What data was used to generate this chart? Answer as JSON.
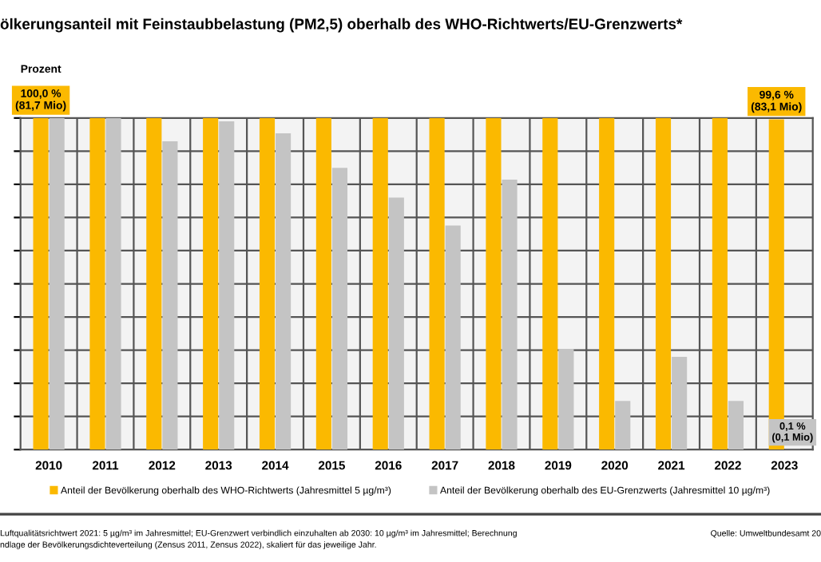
{
  "chart_data": {
    "type": "bar",
    "title": "ölkerungsanteil mit Feinstaubbelastung (PM2,5) oberhalb des WHO-Richtwerts/EU-Grenzwerts*",
    "ylabel": "Prozent",
    "categories": [
      "2010",
      "2011",
      "2012",
      "2013",
      "2014",
      "2015",
      "2016",
      "2017",
      "2018",
      "2019",
      "2020",
      "2021",
      "2022",
      "2023"
    ],
    "series": [
      {
        "name": "Anteil der Bevölkerung oberhalb des WHO-Richtwerts (Jahresmittel 5 µg/m³)",
        "color": "#fbb900",
        "values": [
          100,
          100,
          100,
          100,
          100,
          100,
          100,
          100,
          100,
          100,
          100,
          100,
          100,
          99.6
        ],
        "value_labels": [
          "100,0 %\n(81,7 Mio)",
          null,
          null,
          null,
          null,
          null,
          null,
          null,
          null,
          null,
          null,
          null,
          null,
          "99,6 %\n(83,1 Mio)"
        ]
      },
      {
        "name": "Anteil der Bevölkerung oberhalb des EU-Grenzwerts (Jahresmittel 10 µg/m³)",
        "color": "#c4c4c4",
        "values": [
          100,
          100,
          93,
          99,
          95.4,
          85,
          76,
          67.6,
          81.4,
          30.4,
          14.7,
          28,
          14.7,
          0.1
        ],
        "value_labels": [
          null,
          null,
          null,
          null,
          null,
          null,
          null,
          null,
          null,
          null,
          null,
          null,
          null,
          "0,1 %\n(0,1 Mio)"
        ]
      }
    ],
    "ylim": [
      0,
      100
    ],
    "yticks": [
      {
        "value": 0,
        "label": null
      },
      {
        "value": 10,
        "label": null
      },
      {
        "value": 20,
        "label": null
      },
      {
        "value": 30,
        "label": null
      },
      {
        "value": 40,
        "label": null
      },
      {
        "value": 50,
        "label": null
      },
      {
        "value": 60,
        "label": null
      },
      {
        "value": 70,
        "label": null
      },
      {
        "value": 80,
        "label": null
      },
      {
        "value": 90,
        "label": null
      },
      {
        "value": 100,
        "label": null
      }
    ],
    "grid": true,
    "legend": "bottom",
    "annotations": [
      "Luftqualitätsrichtwert 2021: 5 µg/m³ im Jahresmittel; EU-Grenzwert verbindlich einzuhalten ab 2030: 10 µg/m³ im Jahresmittel; Berechnung\nndlage der Bevölkerungsdichteverteilung (Zensus 2011, Zensus 2022), skaliert für das jeweilige Jahr.",
      "Quelle: Umweltbundesamt 20"
    ]
  }
}
